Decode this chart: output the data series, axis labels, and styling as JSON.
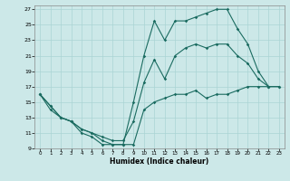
{
  "title": "",
  "xlabel": "Humidex (Indice chaleur)",
  "ylabel": "",
  "bg_color": "#cce8e8",
  "line_color": "#1a6b60",
  "xlim": [
    -0.5,
    23.5
  ],
  "ylim": [
    9,
    27.5
  ],
  "xticks": [
    0,
    1,
    2,
    3,
    4,
    5,
    6,
    7,
    8,
    9,
    10,
    11,
    12,
    13,
    14,
    15,
    16,
    17,
    18,
    19,
    20,
    21,
    22,
    23
  ],
  "yticks": [
    9,
    11,
    13,
    15,
    17,
    19,
    21,
    23,
    25,
    27
  ],
  "line_max": {
    "x": [
      0,
      1,
      2,
      3,
      4,
      5,
      6,
      7,
      8,
      9,
      10,
      11,
      12,
      13,
      14,
      15,
      16,
      17,
      18,
      19,
      20,
      21,
      22
    ],
    "y": [
      16,
      14.5,
      13,
      12.5,
      11,
      10.5,
      9.5,
      9.5,
      9.5,
      15,
      21,
      25.5,
      23,
      25.5,
      25.5,
      26,
      26.5,
      27,
      27,
      24.5,
      22.5,
      19,
      17
    ]
  },
  "line_min": {
    "x": [
      0,
      1,
      2,
      3,
      4,
      5,
      6,
      7,
      8,
      9,
      10,
      11,
      12,
      13,
      14,
      15,
      16,
      17,
      18,
      19,
      20,
      21,
      22,
      23
    ],
    "y": [
      16,
      14,
      13,
      12.5,
      11.5,
      11,
      10,
      9.5,
      9.5,
      9.5,
      14,
      15,
      15.5,
      16,
      16,
      16.5,
      15.5,
      16,
      16,
      16.5,
      17,
      17,
      17,
      17
    ]
  },
  "line_avg": {
    "x": [
      0,
      1,
      2,
      3,
      4,
      5,
      6,
      7,
      8,
      9,
      10,
      11,
      12,
      13,
      14,
      15,
      16,
      17,
      18,
      19,
      20,
      21,
      22,
      23
    ],
    "y": [
      16,
      14.5,
      13,
      12.5,
      11.5,
      11,
      10.5,
      10,
      10,
      12.5,
      17.5,
      20.5,
      18,
      21,
      22,
      22.5,
      22,
      22.5,
      22.5,
      21,
      20,
      18,
      17,
      17
    ]
  },
  "grid_color": "#aad4d4",
  "spine_color": "#888888"
}
